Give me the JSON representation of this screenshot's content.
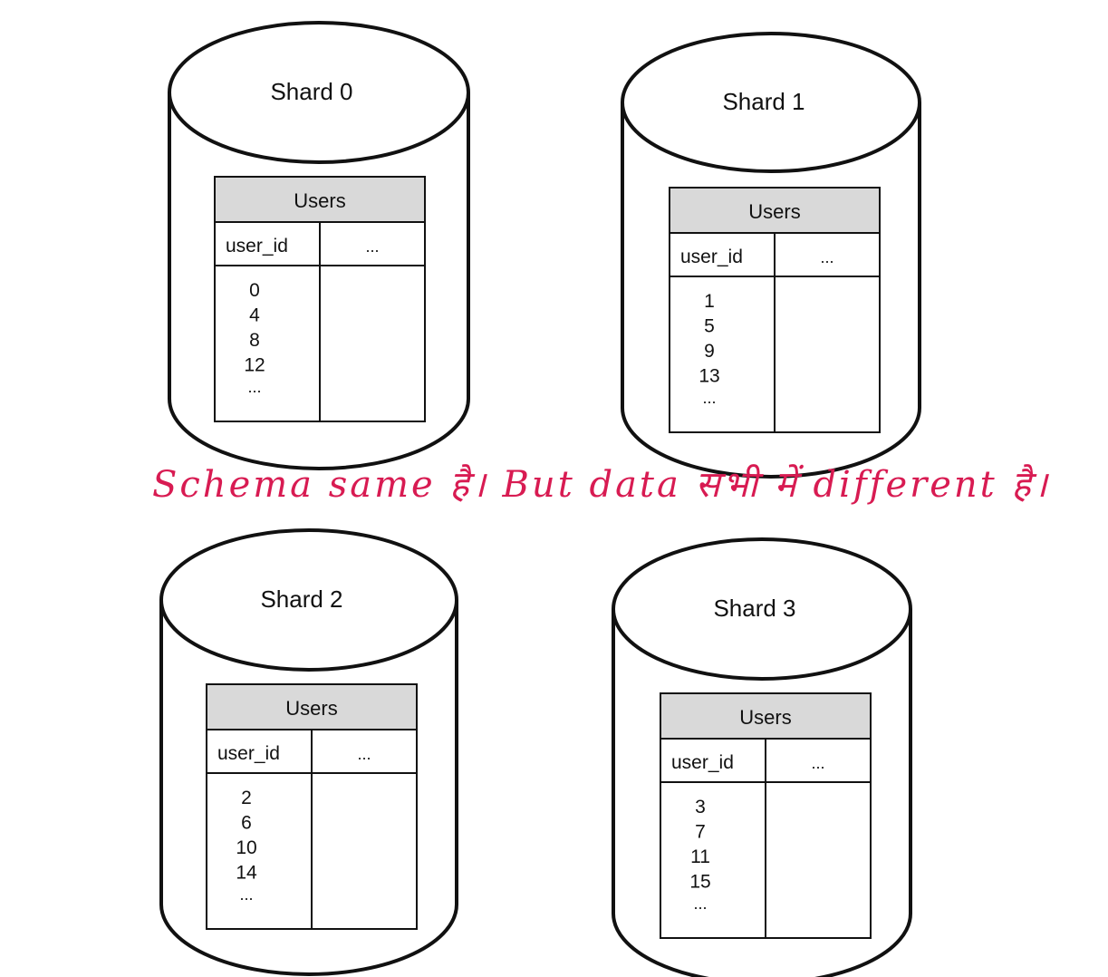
{
  "shards": [
    {
      "title": "Shard 0",
      "table": {
        "name": "Users",
        "columns": [
          "user_id",
          "..."
        ],
        "values": [
          "0",
          "4",
          "8",
          "12",
          "..."
        ]
      }
    },
    {
      "title": "Shard 1",
      "table": {
        "name": "Users",
        "columns": [
          "user_id",
          "..."
        ],
        "values": [
          "1",
          "5",
          "9",
          "13",
          "..."
        ]
      }
    },
    {
      "title": "Shard 2",
      "table": {
        "name": "Users",
        "columns": [
          "user_id",
          "..."
        ],
        "values": [
          "2",
          "6",
          "10",
          "14",
          "..."
        ]
      }
    },
    {
      "title": "Shard 3",
      "table": {
        "name": "Users",
        "columns": [
          "user_id",
          "..."
        ],
        "values": [
          "3",
          "7",
          "11",
          "15",
          "..."
        ]
      }
    }
  ],
  "annotation": {
    "text": "Schema same है। But data सभी में different है।",
    "color": "#d81b52"
  },
  "colors": {
    "table_header_bg": "#d9d9d9",
    "stroke": "#111111"
  }
}
